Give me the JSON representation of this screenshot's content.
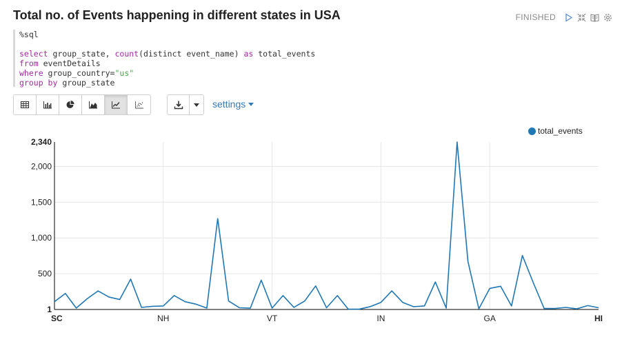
{
  "paragraph": {
    "title": "Total no. of Events happening in different states in USA",
    "status": "FINISHED"
  },
  "editor": {
    "lines": [
      [
        {
          "t": "%sql",
          "c": "plain"
        }
      ],
      [],
      [
        {
          "t": "select",
          "c": "kw"
        },
        {
          "t": " group_state, ",
          "c": "plain"
        },
        {
          "t": "count",
          "c": "fn"
        },
        {
          "t": "(distinct event_name) ",
          "c": "plain"
        },
        {
          "t": "as",
          "c": "kw"
        },
        {
          "t": " total_events",
          "c": "plain"
        }
      ],
      [
        {
          "t": "from",
          "c": "kw"
        },
        {
          "t": " eventDetails",
          "c": "plain"
        }
      ],
      [
        {
          "t": "where",
          "c": "kw"
        },
        {
          "t": " group_country=",
          "c": "plain"
        },
        {
          "t": "\"us\"",
          "c": "str"
        }
      ],
      [
        {
          "t": "group by",
          "c": "kw"
        },
        {
          "t": " group_state",
          "c": "plain"
        }
      ]
    ]
  },
  "toolbar": {
    "settings_label": "settings",
    "active_view": "line-chart"
  },
  "colors": {
    "series": "#1f77b4",
    "link": "#337ab7"
  },
  "chart_data": {
    "type": "line",
    "title": "",
    "xlabel": "",
    "ylabel": "",
    "ylim": [
      1,
      2340
    ],
    "y_ticks": [
      {
        "value": 1,
        "label": "1"
      },
      {
        "value": 500,
        "label": "500"
      },
      {
        "value": 1000,
        "label": "1,000"
      },
      {
        "value": 1500,
        "label": "1,500"
      },
      {
        "value": 2000,
        "label": "2,000"
      },
      {
        "value": 2340,
        "label": "2,340"
      }
    ],
    "x_ticks": [
      {
        "index": 0,
        "label": "SC"
      },
      {
        "index": 10,
        "label": "NH"
      },
      {
        "index": 20,
        "label": "VT"
      },
      {
        "index": 30,
        "label": "IN"
      },
      {
        "index": 40,
        "label": "GA"
      },
      {
        "index": 50,
        "label": "HI"
      }
    ],
    "grid": true,
    "legend_position": "top-right",
    "series": [
      {
        "name": "total_events",
        "values": [
          110,
          225,
          20,
          150,
          260,
          175,
          140,
          425,
          30,
          45,
          50,
          195,
          110,
          75,
          20,
          1270,
          120,
          25,
          20,
          410,
          20,
          195,
          30,
          120,
          330,
          25,
          195,
          5,
          5,
          40,
          100,
          260,
          100,
          40,
          50,
          385,
          20,
          2340,
          670,
          10,
          295,
          325,
          50,
          755,
          375,
          15,
          15,
          30,
          10,
          55,
          25
        ]
      }
    ]
  }
}
